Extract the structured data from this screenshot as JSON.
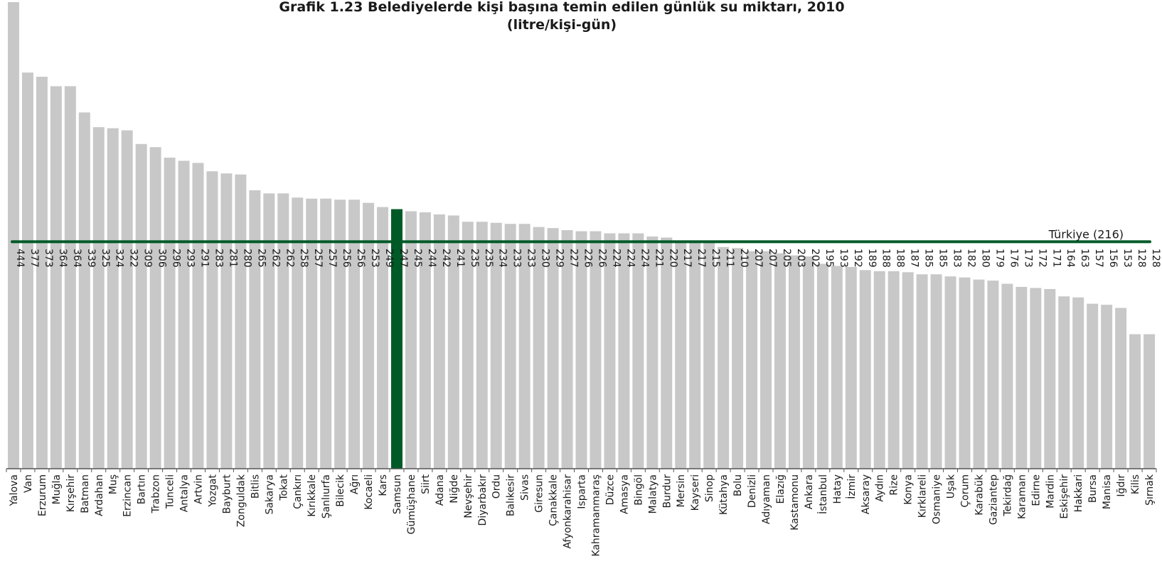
{
  "chart_data": {
    "type": "bar",
    "title": "Grafik 1.23 Belediyelerde kişi başına temin edilen günlük su miktarı, 2010",
    "subtitle": "(litre/kişi-gün)",
    "categories": [
      "Yalova",
      "Van",
      "Erzurum",
      "Muğla",
      "Kırşehir",
      "Batman",
      "Ardahan",
      "Muş",
      "Erzincan",
      "Bartın",
      "Trabzon",
      "Tunceli",
      "Antalya",
      "Artvin",
      "Yozgat",
      "Bayburt",
      "Zonguldak",
      "Bitlis",
      "Sakarya",
      "Tokat",
      "Çankırı",
      "Kırıkkale",
      "Şanlıurfa",
      "Bilecik",
      "Ağrı",
      "Kocaeli",
      "Kars",
      "Samsun",
      "Gümüşhane",
      "Siirt",
      "Adana",
      "Niğde",
      "Nevşehir",
      "Diyarbakır",
      "Ordu",
      "Balıkesir",
      "Sivas",
      "Giresun",
      "Çanakkale",
      "Afyonkarahisar",
      "Isparta",
      "Kahramanmaraş",
      "Düzce",
      "Amasya",
      "Bingöl",
      "Malatya",
      "Burdur",
      "Mersin",
      "Kayseri",
      "Sinop",
      "Kütahya",
      "Bolu",
      "Denizli",
      "Adıyaman",
      "Elazığ",
      "Kastamonu",
      "Ankara",
      "İstanbul",
      "Hatay",
      "İzmir",
      "Aksaray",
      "Aydın",
      "Rize",
      "Konya",
      "Kırklareli",
      "Osmaniye",
      "Uşak",
      "Çorum",
      "Karabük",
      "Gaziantep",
      "Tekirdağ",
      "Karaman",
      "Edirne",
      "Mardin",
      "Eskişehir",
      "Hakkari",
      "Bursa",
      "Manisa",
      "Iğdır",
      "Kilis",
      "Şırnak"
    ],
    "values": [
      444,
      377,
      373,
      364,
      364,
      339,
      325,
      324,
      322,
      309,
      306,
      296,
      293,
      291,
      283,
      281,
      280,
      265,
      262,
      262,
      258,
      257,
      257,
      256,
      256,
      253,
      249,
      247,
      245,
      244,
      242,
      241,
      235,
      235,
      234,
      233,
      233,
      230,
      229,
      227,
      226,
      226,
      224,
      224,
      224,
      221,
      220,
      217,
      217,
      215,
      211,
      210,
      207,
      207,
      205,
      203,
      202,
      195,
      193,
      192,
      189,
      188,
      188,
      187,
      185,
      185,
      183,
      182,
      180,
      179,
      176,
      173,
      172,
      171,
      164,
      163,
      157,
      156,
      153,
      128,
      128
    ],
    "highlight": "Samsun",
    "reference_line": {
      "value": 216,
      "label": "Türkiye (216)"
    },
    "ylim": [
      0,
      444
    ],
    "grid": false,
    "colors": {
      "bar": "#c8c8c8",
      "highlight": "#005a28",
      "reference": "#005a28",
      "highlight_label": "#ffffff"
    }
  }
}
